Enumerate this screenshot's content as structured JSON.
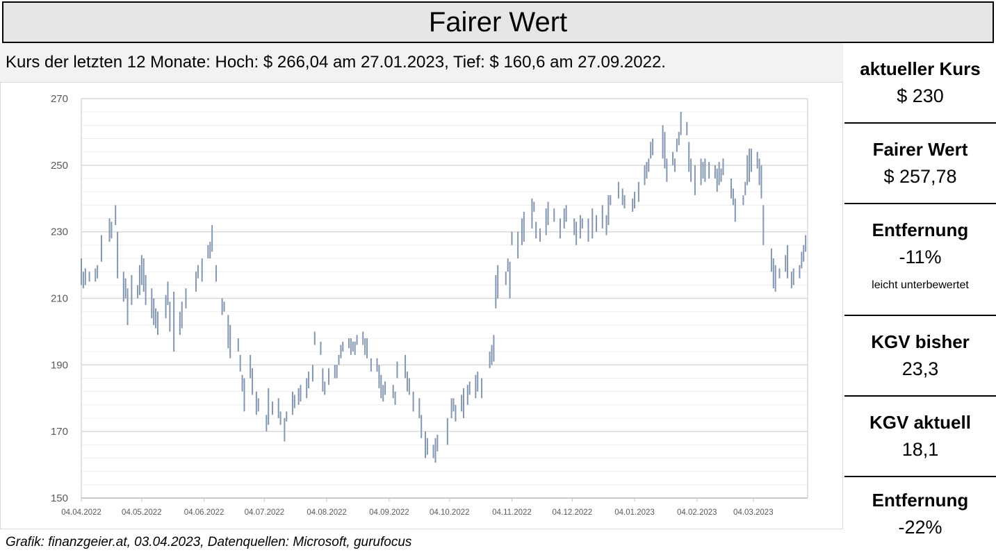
{
  "header": {
    "title": "Fairer Wert",
    "subtitle": "Kurs der letzten 12 Monate: Hoch: $ 266,04 am 27.01.2023, Tief: $ 160,6 am 27.09.2022."
  },
  "chart_data": {
    "type": "high-low",
    "color": "#8497b0",
    "grid": true,
    "xlim": [
      "04.04.2022",
      "31.03.2023"
    ],
    "xticks": [
      "04.04.2022",
      "04.05.2022",
      "04.06.2022",
      "04.07.2022",
      "04.08.2022",
      "04.09.2022",
      "04.10.2022",
      "04.11.2022",
      "04.12.2022",
      "04.01.2023",
      "04.02.2023",
      "04.03.2023"
    ],
    "ylim": [
      150,
      270
    ],
    "yticks": [
      150,
      170,
      190,
      210,
      230,
      250,
      270
    ],
    "x": [
      "04.04.2022",
      "05.04.2022",
      "06.04.2022",
      "08.04.2022",
      "11.04.2022",
      "12.04.2022",
      "14.04.2022",
      "18.04.2022",
      "19.04.2022",
      "21.04.2022",
      "22.04.2022",
      "25.04.2022",
      "26.04.2022",
      "27.04.2022",
      "29.04.2022",
      "02.05.2022",
      "03.05.2022",
      "04.05.2022",
      "05.05.2022",
      "06.05.2022",
      "09.05.2022",
      "10.05.2022",
      "11.05.2022",
      "12.05.2022",
      "16.05.2022",
      "17.05.2022",
      "18.05.2022",
      "20.05.2022",
      "23.05.2022",
      "24.05.2022",
      "26.05.2022",
      "31.05.2022",
      "01.06.2022",
      "03.06.2022",
      "06.06.2022",
      "07.06.2022",
      "08.06.2022",
      "10.06.2022",
      "13.06.2022",
      "14.06.2022",
      "16.06.2022",
      "17.06.2022",
      "21.06.2022",
      "22.06.2022",
      "23.06.2022",
      "24.06.2022",
      "27.06.2022",
      "28.06.2022",
      "30.06.2022",
      "01.07.2022",
      "05.07.2022",
      "06.07.2022",
      "08.07.2022",
      "11.07.2022",
      "12.07.2022",
      "14.07.2022",
      "15.07.2022",
      "18.07.2022",
      "19.07.2022",
      "21.07.2022",
      "22.07.2022",
      "25.07.2022",
      "26.07.2022",
      "28.07.2022",
      "29.07.2022",
      "01.08.2022",
      "02.08.2022",
      "03.08.2022",
      "05.08.2022",
      "08.08.2022",
      "09.08.2022",
      "10.08.2022",
      "11.08.2022",
      "12.08.2022",
      "15.08.2022",
      "16.08.2022",
      "17.08.2022",
      "18.08.2022",
      "19.08.2022",
      "22.08.2022",
      "23.08.2022",
      "24.08.2022",
      "26.08.2022",
      "29.08.2022",
      "30.08.2022",
      "31.08.2022",
      "01.09.2022",
      "02.09.2022",
      "06.09.2022",
      "07.09.2022",
      "08.09.2022",
      "12.09.2022",
      "13.09.2022",
      "14.09.2022",
      "16.09.2022",
      "19.09.2022",
      "20.09.2022",
      "22.09.2022",
      "23.09.2022",
      "26.09.2022",
      "27.09.2022",
      "28.09.2022",
      "03.10.2022",
      "05.10.2022",
      "06.10.2022",
      "07.10.2022",
      "10.10.2022",
      "11.10.2022",
      "13.10.2022",
      "14.10.2022",
      "17.10.2022",
      "18.10.2022",
      "20.10.2022",
      "24.10.2022",
      "25.10.2022",
      "26.10.2022",
      "27.10.2022",
      "28.10.2022",
      "01.11.2022",
      "02.11.2022",
      "03.11.2022",
      "04.11.2022",
      "07.11.2022",
      "09.11.2022",
      "10.11.2022",
      "14.11.2022",
      "15.11.2022",
      "16.11.2022",
      "18.11.2022",
      "21.11.2022",
      "22.11.2022",
      "25.11.2022",
      "28.11.2022",
      "30.11.2022",
      "01.12.2022",
      "05.12.2022",
      "06.12.2022",
      "08.12.2022",
      "09.12.2022",
      "12.12.2022",
      "14.12.2022",
      "16.12.2022",
      "19.12.2022",
      "21.12.2022",
      "22.12.2022",
      "23.12.2022",
      "27.12.2022",
      "29.12.2022",
      "30.12.2022",
      "03.01.2023",
      "04.01.2023",
      "06.01.2023",
      "09.01.2023",
      "10.01.2023",
      "11.01.2023",
      "12.01.2023",
      "13.01.2023",
      "18.01.2023",
      "19.01.2023",
      "20.01.2023",
      "23.01.2023",
      "24.01.2023",
      "25.01.2023",
      "26.01.2023",
      "27.01.2023",
      "30.01.2023",
      "31.01.2023",
      "01.02.2023",
      "03.02.2023",
      "06.02.2023",
      "07.02.2023",
      "08.02.2023",
      "10.02.2023",
      "13.02.2023",
      "14.02.2023",
      "15.02.2023",
      "16.02.2023",
      "17.02.2023",
      "21.02.2023",
      "22.02.2023",
      "23.02.2023",
      "27.02.2023",
      "28.02.2023",
      "01.03.2023",
      "02.03.2023",
      "03.03.2023",
      "06.03.2023",
      "07.03.2023",
      "08.03.2023",
      "09.03.2023",
      "13.03.2023",
      "14.03.2023",
      "15.03.2023",
      "17.03.2023",
      "20.03.2023",
      "21.03.2023",
      "23.03.2023",
      "24.03.2023",
      "27.03.2023",
      "28.03.2023",
      "29.03.2023",
      "30.03.2023"
    ],
    "low": [
      214,
      213,
      214,
      215,
      215,
      216,
      221,
      227,
      228,
      232,
      216,
      209,
      210,
      202,
      208,
      210,
      211,
      214,
      212,
      208,
      204,
      202,
      201,
      199,
      204,
      208,
      200,
      194,
      199,
      201,
      207,
      212,
      216,
      215,
      222,
      222,
      224,
      215,
      205,
      206,
      195,
      192,
      194,
      188,
      182,
      176,
      186,
      181,
      175,
      176,
      170,
      172,
      175,
      174,
      172,
      167,
      173,
      175,
      177,
      178,
      179,
      180,
      183,
      185,
      196,
      193,
      182,
      181,
      184,
      186,
      186,
      190,
      192,
      194,
      195,
      193,
      194,
      193,
      196,
      196,
      193,
      192,
      188,
      188,
      183,
      180,
      179,
      181,
      180,
      178,
      186,
      186,
      182,
      181,
      176,
      174,
      168,
      162,
      163,
      162,
      160.6,
      164,
      166,
      174,
      176,
      173,
      176,
      174,
      178,
      181,
      180,
      182,
      180,
      189,
      190,
      191,
      207,
      210,
      214,
      218,
      210,
      226,
      222,
      226,
      227,
      231,
      236,
      228,
      227,
      229,
      232,
      233,
      228,
      231,
      233,
      229,
      226,
      228,
      231,
      227,
      228,
      230,
      231,
      229,
      232,
      238,
      240,
      238,
      237,
      236,
      237,
      239,
      244,
      246,
      248,
      252,
      253,
      252,
      249,
      245,
      250,
      248,
      254,
      256,
      259,
      259,
      248,
      245,
      241,
      244,
      246,
      245,
      246,
      246,
      242,
      244,
      245,
      247,
      240,
      238,
      233,
      238,
      241,
      244,
      245,
      248,
      249,
      244,
      240,
      226,
      218,
      213,
      212,
      216,
      218,
      216,
      213,
      214,
      216,
      219,
      221,
      224
    ],
    "high": [
      222,
      218,
      219,
      218,
      219,
      220,
      229,
      234,
      233,
      238,
      230,
      218,
      216,
      213,
      217,
      214,
      220,
      223,
      222,
      217,
      213,
      210,
      207,
      206,
      211,
      215,
      209,
      212,
      206,
      209,
      213,
      218,
      220,
      222,
      226,
      227,
      232,
      220,
      210,
      209,
      205,
      202,
      198,
      193,
      187,
      186,
      193,
      189,
      182,
      180,
      175,
      183,
      179,
      180,
      176,
      174,
      176,
      182,
      181,
      183,
      184,
      186,
      188,
      190,
      200,
      197,
      189,
      185,
      189,
      190,
      190,
      193,
      196,
      197,
      198,
      198,
      197,
      197,
      199,
      200,
      198,
      198,
      192,
      192,
      190,
      187,
      184,
      185,
      184,
      182,
      191,
      193,
      188,
      186,
      182,
      180,
      175,
      170,
      168,
      166,
      168,
      169,
      174,
      180,
      180,
      178,
      181,
      183,
      184,
      185,
      187,
      188,
      186,
      194,
      196,
      199,
      217,
      220,
      218,
      222,
      221,
      230,
      230,
      234,
      236,
      240,
      239,
      233,
      231,
      237,
      239,
      237,
      234,
      237,
      238,
      234,
      233,
      235,
      234,
      234,
      237,
      235,
      238,
      235,
      241,
      241,
      245,
      243,
      241,
      240,
      242,
      245,
      250,
      251,
      252,
      257,
      258,
      262,
      260,
      252,
      254,
      252,
      258,
      260,
      266.04,
      263,
      257,
      252,
      250,
      252,
      251,
      252,
      251,
      250,
      249,
      251,
      249,
      252,
      246,
      243,
      240,
      241,
      245,
      253,
      255,
      255,
      254,
      252,
      250,
      238,
      225,
      222,
      220,
      219,
      223,
      226,
      218,
      219,
      220,
      224,
      226,
      229
    ]
  },
  "panel": [
    {
      "label": "aktueller Kurs",
      "value": "$ 230"
    },
    {
      "label": "Fairer Wert",
      "value": "$ 257,78"
    },
    {
      "label": "Entfernung",
      "value": "-11%",
      "note": "leicht unterbewertet"
    },
    {
      "label": "KGV bisher",
      "value": "23,3"
    },
    {
      "label": "KGV aktuell",
      "value": "18,1"
    },
    {
      "label": "Entfernung",
      "value": "-22%"
    }
  ],
  "footer": "Grafik: finanzgeier.at, 03.04.2023, Datenquellen: Microsoft, gurufocus"
}
